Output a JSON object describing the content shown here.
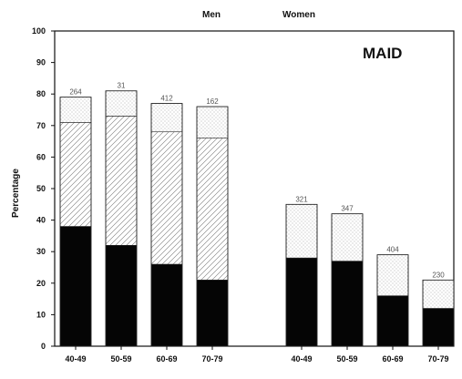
{
  "chart_data": {
    "type": "bar",
    "title": "MAID",
    "group_labels": [
      "Men",
      "Women"
    ],
    "ylabel": "Percentage",
    "ylim": [
      0,
      100
    ],
    "yticks": [
      0,
      10,
      20,
      30,
      40,
      50,
      60,
      70,
      80,
      90,
      100
    ],
    "stacked": true,
    "grid": false,
    "groups": [
      {
        "name": "Men",
        "categories": [
          "40-49",
          "50-59",
          "60-69",
          "70-79"
        ],
        "top_labels": [
          "264",
          "31",
          "412",
          "162"
        ],
        "segments": [
          {
            "pattern": "solid",
            "values": [
              38,
              32,
              26,
              21
            ]
          },
          {
            "pattern": "hatched",
            "values": [
              33,
              41,
              42,
              45
            ]
          },
          {
            "pattern": "dotted",
            "values": [
              8,
              8,
              9,
              10
            ]
          }
        ]
      },
      {
        "name": "Women",
        "categories": [
          "40-49",
          "50-59",
          "60-69",
          "70-79"
        ],
        "top_labels": [
          "321",
          "347",
          "404",
          "230"
        ],
        "segments": [
          {
            "pattern": "solid",
            "values": [
              28,
              27,
              16,
              12
            ]
          },
          {
            "pattern": "hatched",
            "values": [
              0,
              0,
              0,
              0
            ]
          },
          {
            "pattern": "dotted",
            "values": [
              17,
              15,
              13,
              9
            ]
          }
        ]
      }
    ]
  }
}
